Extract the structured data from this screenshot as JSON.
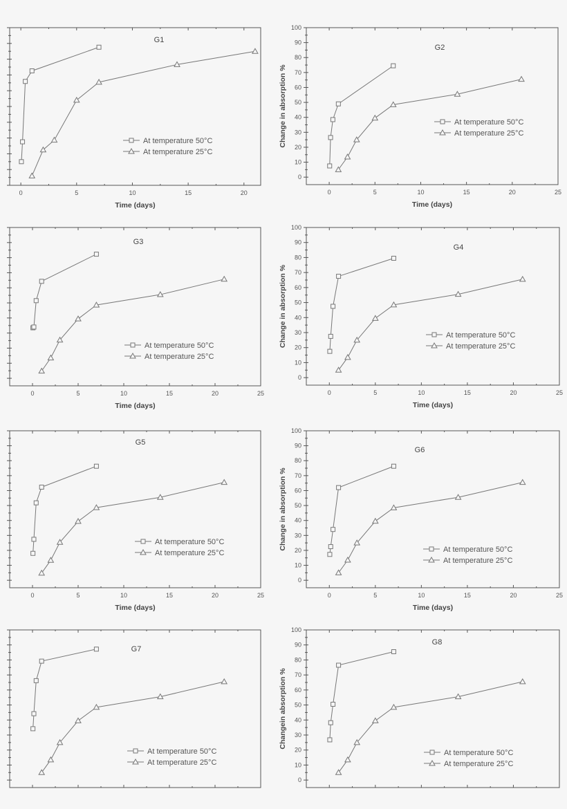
{
  "chart_data": [
    {
      "type": "line",
      "title": "G1",
      "xlabel": "Time (days)",
      "ylabel": "",
      "xlim": [
        -1,
        21.5
      ],
      "ylim": [
        0,
        100
      ],
      "xtick_labels": [
        "0",
        "5",
        "10",
        "15",
        "20"
      ],
      "ytick_labels": [],
      "grid": false,
      "legend": "lower-right",
      "line_color": "#777777",
      "series": [
        {
          "name": "At temperature 50°C",
          "marker": "square",
          "x": [
            0.05,
            0.15,
            0.4,
            1,
            7
          ],
          "y": [
            15,
            27.6,
            65.9,
            72.6,
            87.6
          ]
        },
        {
          "name": "At temperature 25°C",
          "marker": "triangle",
          "x": [
            1,
            2,
            3,
            5,
            7,
            14,
            21
          ],
          "y": [
            6,
            22.5,
            28.7,
            54,
            65.4,
            76.6,
            85
          ]
        }
      ]
    },
    {
      "type": "line",
      "title": "G2",
      "xlabel": "Time (days)",
      "ylabel": "Change in absorption %",
      "xlim": [
        -2.5,
        25
      ],
      "ylim": [
        -5,
        100
      ],
      "xtick_labels": [
        "0",
        "5",
        "10",
        "15",
        "20",
        "25"
      ],
      "ytick_labels": [
        "0",
        "10",
        "20",
        "30",
        "40",
        "50",
        "60",
        "70",
        "80",
        "90",
        "100"
      ],
      "grid": false,
      "legend": "center-right",
      "line_color": "#777777",
      "series": [
        {
          "name": "At temperature 50°C",
          "marker": "square",
          "x": [
            0.05,
            0.15,
            0.4,
            1,
            7
          ],
          "y": [
            7.5,
            26.5,
            38.5,
            49,
            74.5
          ]
        },
        {
          "name": "At temperature 25°C",
          "marker": "triangle",
          "x": [
            1,
            2,
            3,
            5,
            7,
            14,
            21
          ],
          "y": [
            5,
            13.5,
            25,
            39.5,
            48.5,
            55.5,
            65.5
          ]
        }
      ]
    },
    {
      "type": "line",
      "title": "G3",
      "xlabel": "Time (days)",
      "ylabel": "",
      "xlim": [
        -2.5,
        25
      ],
      "ylim": [
        -5,
        100
      ],
      "xtick_labels": [
        "0",
        "5",
        "10",
        "15",
        "20",
        "25"
      ],
      "ytick_labels": [],
      "grid": false,
      "legend": "lower-right",
      "line_color": "#777777",
      "series": [
        {
          "name": "At temperature 50°C",
          "marker": "square",
          "x": [
            0.05,
            0.15,
            0.4,
            1,
            7
          ],
          "y": [
            33.5,
            34,
            51.5,
            64.3,
            82.3
          ]
        },
        {
          "name": "At temperature 25°C",
          "marker": "triangle",
          "x": [
            1,
            2,
            3,
            5,
            7,
            14,
            21
          ],
          "y": [
            4.8,
            13.5,
            25.4,
            39.4,
            48.6,
            55.5,
            65.7
          ]
        }
      ]
    },
    {
      "type": "line",
      "title": "G4",
      "xlabel": "Time (days)",
      "ylabel": "Change in absorption %",
      "xlim": [
        -2.5,
        25
      ],
      "ylim": [
        -5,
        100
      ],
      "xtick_labels": [
        "0",
        "5",
        "10",
        "15",
        "20",
        "25"
      ],
      "ytick_labels": [
        "0",
        "10",
        "20",
        "30",
        "40",
        "50",
        "60",
        "70",
        "80",
        "90",
        "100"
      ],
      "grid": false,
      "legend": "lower-right",
      "line_color": "#777777",
      "series": [
        {
          "name": "At temperature 50°C",
          "marker": "square",
          "x": [
            0.05,
            0.15,
            0.4,
            1,
            7
          ],
          "y": [
            17.5,
            27.5,
            47.5,
            67.5,
            79.5
          ]
        },
        {
          "name": "At temperature 25°C",
          "marker": "triangle",
          "x": [
            1,
            2,
            3,
            5,
            7,
            14,
            21
          ],
          "y": [
            5,
            13.5,
            25,
            39.5,
            48.5,
            55.5,
            65.5
          ]
        }
      ]
    },
    {
      "type": "line",
      "title": "G5",
      "xlabel": "Time (days)",
      "ylabel": "",
      "xlim": [
        -2.5,
        25
      ],
      "ylim": [
        -5,
        100
      ],
      "xtick_labels": [
        "0",
        "5",
        "10",
        "15",
        "20",
        "25"
      ],
      "ytick_labels": [],
      "grid": false,
      "legend": "lower-right",
      "line_color": "#777777",
      "series": [
        {
          "name": "At temperature 50°C",
          "marker": "square",
          "x": [
            0.05,
            0.15,
            0.4,
            1,
            7
          ],
          "y": [
            18,
            27.4,
            51.8,
            62.3,
            76.3
          ]
        },
        {
          "name": "At temperature 25°C",
          "marker": "triangle",
          "x": [
            1,
            2,
            3,
            5,
            7,
            14,
            21
          ],
          "y": [
            4.8,
            13.4,
            25.4,
            39.4,
            48.6,
            55.5,
            65.5
          ]
        }
      ]
    },
    {
      "type": "line",
      "title": "G6",
      "xlabel": "Time (days)",
      "ylabel": "Change in absorption %",
      "xlim": [
        -2.5,
        25
      ],
      "ylim": [
        -5,
        100
      ],
      "xtick_labels": [
        "0",
        "5",
        "10",
        "15",
        "20",
        "25"
      ],
      "ytick_labels": [
        "0",
        "10",
        "20",
        "30",
        "40",
        "50",
        "60",
        "70",
        "80",
        "90",
        "100"
      ],
      "grid": false,
      "legend": "lower-right",
      "line_color": "#777777",
      "series": [
        {
          "name": "At temperature 50°C",
          "marker": "square",
          "x": [
            0.05,
            0.15,
            0.4,
            1,
            7
          ],
          "y": [
            17.3,
            22.5,
            34,
            62,
            76.3
          ]
        },
        {
          "name": "At temperature 25°C",
          "marker": "triangle",
          "x": [
            1,
            2,
            3,
            5,
            7,
            14,
            21
          ],
          "y": [
            5,
            13.5,
            25,
            39.5,
            48.5,
            55.5,
            65.5
          ]
        }
      ]
    },
    {
      "type": "line",
      "title": "G7",
      "xlabel": "",
      "ylabel": "",
      "xlim": [
        -2.5,
        25
      ],
      "ylim": [
        -5,
        100
      ],
      "xtick_labels": [],
      "ytick_labels": [],
      "grid": false,
      "legend": "lower-right",
      "line_color": "#777777",
      "series": [
        {
          "name": "At temperature 50°C",
          "marker": "square",
          "x": [
            0.05,
            0.15,
            0.4,
            1,
            7
          ],
          "y": [
            34.2,
            44.2,
            66.2,
            79.2,
            87.2
          ]
        },
        {
          "name": "At temperature 25°C",
          "marker": "triangle",
          "x": [
            1,
            2,
            3,
            5,
            7,
            14,
            21
          ],
          "y": [
            5,
            13.5,
            25,
            39.5,
            48.5,
            55.5,
            65.5
          ]
        }
      ]
    },
    {
      "type": "line",
      "title": "G8",
      "xlabel": "",
      "ylabel": "Changein absorption %",
      "xlim": [
        -2.5,
        25
      ],
      "ylim": [
        -5,
        100
      ],
      "xtick_labels": [],
      "ytick_labels": [
        "0",
        "10",
        "20",
        "30",
        "40",
        "50",
        "60",
        "70",
        "80",
        "90",
        "100"
      ],
      "grid": false,
      "legend": "lower-right",
      "line_color": "#777777",
      "series": [
        {
          "name": "At temperature 50°C",
          "marker": "square",
          "x": [
            0.05,
            0.15,
            0.4,
            1,
            7
          ],
          "y": [
            26.8,
            38.2,
            50.5,
            76.5,
            85.5
          ]
        },
        {
          "name": "At temperature 25°C",
          "marker": "triangle",
          "x": [
            1,
            2,
            3,
            5,
            7,
            14,
            21
          ],
          "y": [
            5,
            13.5,
            25,
            39.5,
            48.5,
            55.5,
            65.5
          ]
        }
      ]
    }
  ]
}
